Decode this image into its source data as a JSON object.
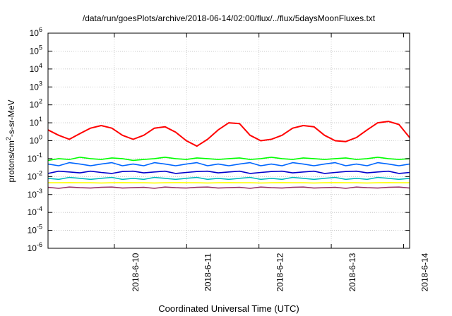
{
  "chart_data": {
    "type": "line",
    "title": "/data/run/goesPlots/archive/2018-06-14/02:00/flux/../flux/5daysMoonFluxes.txt",
    "xlabel": "Coordinated Universal Time (UTC)",
    "ylabel_parts": [
      "protons/cm",
      "2",
      "-s-sr-MeV"
    ],
    "y_scale": "log",
    "ylim": [
      1e-06,
      1000000.0
    ],
    "y_tick_exponents": [
      -6,
      -5,
      -4,
      -3,
      -2,
      -1,
      0,
      1,
      2,
      3,
      4,
      5,
      6
    ],
    "y_tick_base": "10",
    "x_range_days": [
      "2018-06-09 02:00",
      "2018-06-14 02:00"
    ],
    "x_ticks": [
      "2018-6-10",
      "2018-6-11",
      "2018-6-12",
      "2018-6-13",
      "2018-6-14"
    ],
    "grid": true,
    "legend": "none",
    "series": [
      {
        "color": "#ff0000",
        "values": [
          4.0,
          2.0,
          1.2,
          2.5,
          5.0,
          7.0,
          5.0,
          2.0,
          1.2,
          2.0,
          5.0,
          6.0,
          3.0,
          1.0,
          0.5,
          1.2,
          4.0,
          10.0,
          9.0,
          2.0,
          1.0,
          1.2,
          2.0,
          5.0,
          7.0,
          6.0,
          2.0,
          1.0,
          0.9,
          1.5,
          4.0,
          10.0,
          12.0,
          8.0,
          1.5
        ]
      },
      {
        "color": "#00ff00",
        "values": [
          0.08,
          0.1,
          0.09,
          0.12,
          0.1,
          0.09,
          0.11,
          0.1,
          0.08,
          0.09,
          0.1,
          0.12,
          0.1,
          0.09,
          0.11,
          0.1,
          0.09,
          0.1,
          0.11,
          0.09,
          0.1,
          0.12,
          0.1,
          0.09,
          0.11,
          0.1,
          0.09,
          0.1,
          0.11,
          0.09,
          0.1,
          0.12,
          0.1,
          0.09,
          0.1
        ]
      },
      {
        "color": "#0066ff",
        "values": [
          0.05,
          0.04,
          0.06,
          0.05,
          0.04,
          0.05,
          0.06,
          0.04,
          0.05,
          0.04,
          0.06,
          0.05,
          0.04,
          0.05,
          0.06,
          0.04,
          0.05,
          0.04,
          0.05,
          0.06,
          0.04,
          0.05,
          0.04,
          0.06,
          0.05,
          0.04,
          0.05,
          0.06,
          0.04,
          0.05,
          0.04,
          0.06,
          0.05,
          0.04,
          0.05
        ]
      },
      {
        "color": "#0000cc",
        "values": [
          0.015,
          0.02,
          0.018,
          0.016,
          0.02,
          0.017,
          0.015,
          0.019,
          0.02,
          0.016,
          0.018,
          0.02,
          0.015,
          0.017,
          0.019,
          0.02,
          0.016,
          0.018,
          0.02,
          0.015,
          0.017,
          0.019,
          0.02,
          0.016,
          0.018,
          0.02,
          0.015,
          0.017,
          0.019,
          0.02,
          0.016,
          0.018,
          0.02,
          0.015,
          0.017
        ]
      },
      {
        "color": "#00bbbb",
        "values": [
          0.008,
          0.007,
          0.009,
          0.008,
          0.007,
          0.008,
          0.009,
          0.007,
          0.008,
          0.007,
          0.009,
          0.008,
          0.007,
          0.008,
          0.009,
          0.007,
          0.008,
          0.007,
          0.008,
          0.009,
          0.007,
          0.008,
          0.007,
          0.009,
          0.008,
          0.007,
          0.008,
          0.009,
          0.007,
          0.008,
          0.007,
          0.009,
          0.008,
          0.007,
          0.008
        ]
      },
      {
        "color": "#ffff00",
        "values": [
          0.0045,
          0.0045,
          0.0046,
          0.0045,
          0.0045,
          0.0044,
          0.0045,
          0.0046,
          0.0045,
          0.0045,
          0.0044,
          0.0045,
          0.0046,
          0.0045,
          0.0045,
          0.0044,
          0.0045,
          0.0046,
          0.0045,
          0.0045,
          0.0044,
          0.0045,
          0.0046,
          0.0045,
          0.0045,
          0.0044,
          0.0045,
          0.0046,
          0.0045,
          0.0045,
          0.0044,
          0.0045,
          0.0046,
          0.0045,
          0.0045
        ]
      },
      {
        "color": "#993366",
        "values": [
          0.0025,
          0.0022,
          0.0026,
          0.0024,
          0.0023,
          0.0025,
          0.0026,
          0.0023,
          0.0024,
          0.0025,
          0.0022,
          0.0026,
          0.0024,
          0.0023,
          0.0025,
          0.0026,
          0.0023,
          0.0024,
          0.0025,
          0.0022,
          0.0026,
          0.0024,
          0.0023,
          0.0025,
          0.0026,
          0.0023,
          0.0024,
          0.0025,
          0.0022,
          0.0026,
          0.0024,
          0.0023,
          0.0025,
          0.0026,
          0.0023
        ]
      }
    ]
  }
}
